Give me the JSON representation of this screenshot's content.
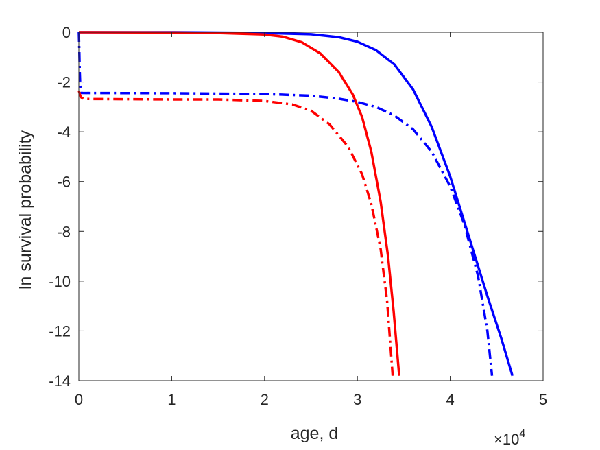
{
  "chart_data": {
    "type": "line",
    "title": "",
    "xlabel": "age, d",
    "ylabel": "ln survival probability",
    "x_multiplier_base": "×10",
    "x_multiplier_exponent": "4",
    "xlim": [
      0,
      50000
    ],
    "ylim": [
      -14,
      0
    ],
    "x_ticks": [
      0,
      10000,
      20000,
      30000,
      40000,
      50000
    ],
    "x_tick_labels": [
      "0",
      "1",
      "2",
      "3",
      "4",
      "5"
    ],
    "y_ticks": [
      0,
      -2,
      -4,
      -6,
      -8,
      -10,
      -12,
      -14
    ],
    "y_tick_labels": [
      "0",
      "-2",
      "-4",
      "-6",
      "-8",
      "-10",
      "-12",
      "-14"
    ],
    "grid": false,
    "box": true,
    "series": [
      {
        "color": "#0000ff",
        "style": "solid",
        "points": [
          [
            0,
            0
          ],
          [
            10000,
            0
          ],
          [
            20000,
            -0.03
          ],
          [
            25000,
            -0.08
          ],
          [
            28000,
            -0.2
          ],
          [
            30000,
            -0.38
          ],
          [
            32000,
            -0.72
          ],
          [
            34000,
            -1.3
          ],
          [
            36000,
            -2.3
          ],
          [
            38000,
            -3.8
          ],
          [
            40000,
            -5.8
          ],
          [
            42000,
            -8.2
          ],
          [
            44000,
            -10.6
          ],
          [
            45500,
            -12.3
          ],
          [
            46700,
            -13.8
          ]
        ]
      },
      {
        "color": "#ff0000",
        "style": "solid",
        "points": [
          [
            0,
            0
          ],
          [
            10000,
            -0.01
          ],
          [
            15000,
            -0.03
          ],
          [
            20000,
            -0.09
          ],
          [
            22000,
            -0.18
          ],
          [
            24000,
            -0.4
          ],
          [
            26000,
            -0.85
          ],
          [
            28000,
            -1.6
          ],
          [
            29500,
            -2.5
          ],
          [
            30500,
            -3.4
          ],
          [
            31500,
            -4.8
          ],
          [
            32500,
            -6.8
          ],
          [
            33300,
            -9.0
          ],
          [
            33900,
            -11.2
          ],
          [
            34500,
            -13.8
          ]
        ]
      },
      {
        "color": "#0000ff",
        "style": "dashdot",
        "points": [
          [
            0,
            0
          ],
          [
            50,
            -0.7
          ],
          [
            100,
            -1.6
          ],
          [
            150,
            -2.1
          ],
          [
            200,
            -2.35
          ],
          [
            300,
            -2.44
          ],
          [
            10000,
            -2.45
          ],
          [
            20000,
            -2.48
          ],
          [
            25000,
            -2.55
          ],
          [
            28000,
            -2.67
          ],
          [
            30000,
            -2.8
          ],
          [
            32000,
            -3.0
          ],
          [
            34000,
            -3.35
          ],
          [
            36000,
            -3.9
          ],
          [
            38000,
            -4.8
          ],
          [
            40000,
            -6.2
          ],
          [
            41500,
            -7.7
          ],
          [
            43000,
            -9.8
          ],
          [
            44000,
            -12.0
          ],
          [
            44500,
            -13.8
          ]
        ]
      },
      {
        "color": "#ff0000",
        "style": "dashdot",
        "points": [
          [
            0,
            -2.35
          ],
          [
            200,
            -2.6
          ],
          [
            500,
            -2.68
          ],
          [
            10000,
            -2.7
          ],
          [
            15000,
            -2.7
          ],
          [
            20000,
            -2.76
          ],
          [
            23000,
            -2.9
          ],
          [
            25000,
            -3.15
          ],
          [
            27000,
            -3.7
          ],
          [
            29000,
            -4.6
          ],
          [
            30500,
            -5.7
          ],
          [
            31500,
            -6.9
          ],
          [
            32500,
            -8.7
          ],
          [
            33200,
            -10.8
          ],
          [
            33800,
            -13.8
          ]
        ]
      }
    ]
  }
}
